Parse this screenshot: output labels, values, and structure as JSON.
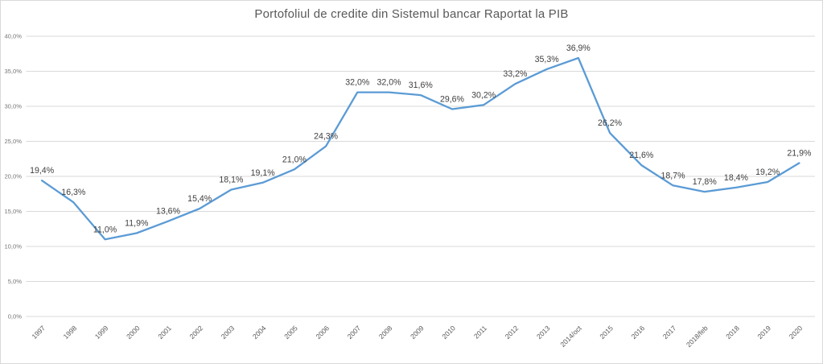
{
  "window": {
    "background": "#ffffff",
    "border_color": "#d9d9d9"
  },
  "chart_data": {
    "type": "line",
    "title": "Portofoliul de credite din Sistemul bancar Raportat la PIB",
    "categories": [
      "1997",
      "1998",
      "1999",
      "2000",
      "2001",
      "2002",
      "2003",
      "2004",
      "2005",
      "2006",
      "2007",
      "2008",
      "2009",
      "2010",
      "2011",
      "2012",
      "2013",
      "2014/oct",
      "2015",
      "2016",
      "2017",
      "2018/feb",
      "2018",
      "2019",
      "2020"
    ],
    "values": [
      19.4,
      16.3,
      11.0,
      11.9,
      13.6,
      15.4,
      18.1,
      19.1,
      21.0,
      24.3,
      32.0,
      32.0,
      31.6,
      29.6,
      30.2,
      33.2,
      35.3,
      36.9,
      26.2,
      21.6,
      18.7,
      17.8,
      18.4,
      19.2,
      21.9
    ],
    "point_labels": [
      "19,4%",
      "16,3%",
      "11,0%",
      "11,9%",
      "13,6%",
      "15,4%",
      "18,1%",
      "19,1%",
      "21,0%",
      "24,3%",
      "32,0%",
      "32,0%",
      "31,6%",
      "29,6%",
      "30,2%",
      "33,2%",
      "35,3%",
      "36,9%",
      "26,2%",
      "21,6%",
      "18,7%",
      "17,8%",
      "18,4%",
      "19,2%",
      "21,9%"
    ],
    "xlabel": "",
    "ylabel": "",
    "ylim": [
      0,
      40
    ],
    "y_tick_step": 5,
    "y_tick_labels": [
      "0,0%",
      "5,0%",
      "10,0%",
      "15,0%",
      "20,0%",
      "25,0%",
      "30,0%",
      "35,0%",
      "40,0%"
    ],
    "grid": true,
    "legend": "none",
    "colors": {
      "line": "#5b9bd5",
      "gridline": "#d9d9d9",
      "data_label": "#404040",
      "y_tick_label": "#767676",
      "x_tick_label": "#595959",
      "title": "#595959"
    }
  }
}
